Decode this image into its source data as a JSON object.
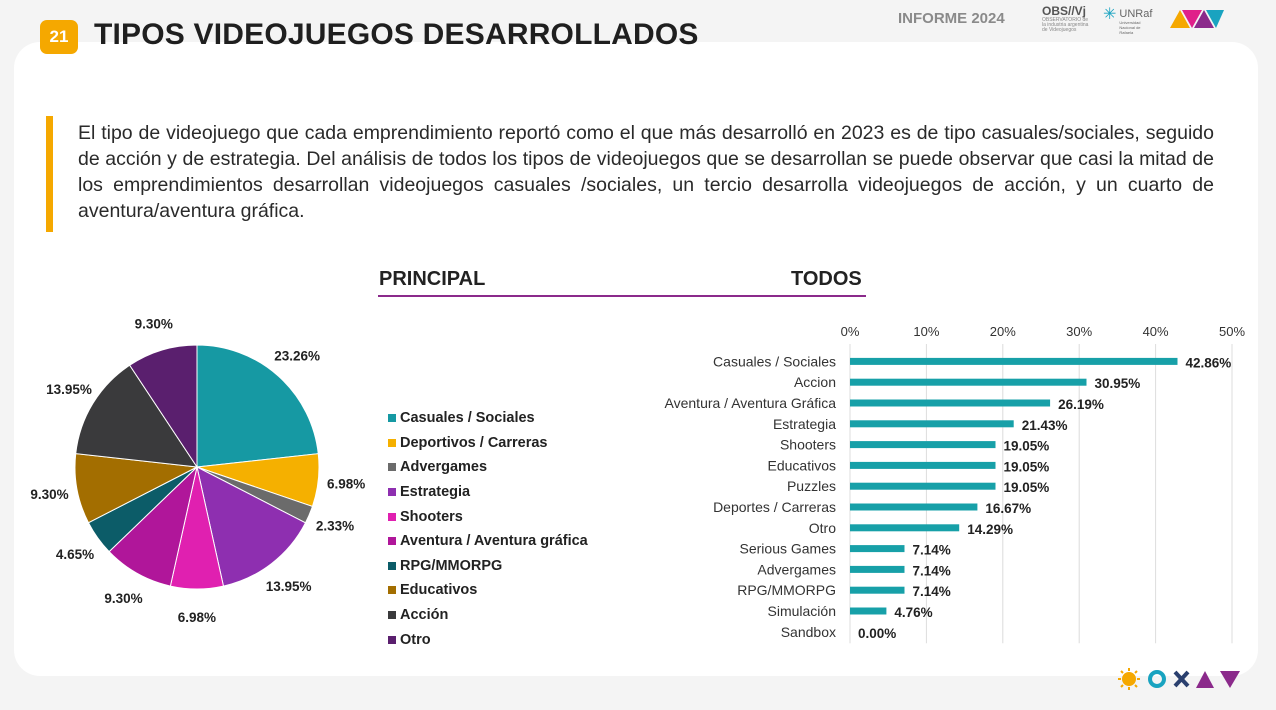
{
  "header": {
    "badge": "21",
    "title": "TIPOS VIDEOJUEGOS DESARROLLADOS",
    "brand": "INFORME 2024",
    "logo_obs": "OBS//Vj",
    "logo_obs_sub": "OBSERVATORIO de la industria argentina de Videojuegos",
    "logo_unraf": "UNRaf",
    "logo_unraf_sub": "Universidad Nacional de Rafaela"
  },
  "intro": "El tipo de videojuego que cada emprendimiento reportó como el que más desarrolló en 2023 es de tipo casuales/sociales, seguido de acción y de estrategia. Del análisis de todos los tipos de videojuegos que se desarrollan se puede observar que casi la mitad de los emprendimientos desarrollan videojuegos casuales /sociales, un tercio desarrolla videojuegos de acción, y un cuarto de aventura/aventura gráfica.",
  "sections": {
    "principal": "PRINCIPAL",
    "todos": "TODOS"
  },
  "colors": {
    "accent": "#f5a800",
    "line": "#8b2a8b",
    "bar": "#17a0a8"
  },
  "chart_data": [
    {
      "type": "pie",
      "title": "PRINCIPAL",
      "legend_position": "right",
      "categories": [
        "Casuales / Sociales",
        "Deportivos / Carreras",
        "Advergames",
        "Estrategia",
        "Shooters",
        "Aventura / Aventura gráfica",
        "RPG/MMORPG",
        "Educativos",
        "Acción",
        "Otro"
      ],
      "values": [
        23.26,
        6.98,
        2.33,
        13.95,
        6.98,
        9.3,
        4.65,
        9.3,
        13.95,
        9.3
      ],
      "labels": [
        "23.26%",
        "6.98%",
        "2.33%",
        "13.95%",
        "6.98%",
        "9.30%",
        "4.65%",
        "9.30%",
        "13.95%",
        "9.30%"
      ],
      "colors": [
        "#1699a3",
        "#f5b000",
        "#6b6b6b",
        "#8e2fb0",
        "#e020b0",
        "#b0169a",
        "#0c5c68",
        "#a36e00",
        "#3a3a3c",
        "#5a1f6e"
      ]
    },
    {
      "type": "bar",
      "orientation": "horizontal",
      "title": "TODOS",
      "categories": [
        "Casuales / Sociales",
        "Accion",
        "Aventura / Aventura Gráfica",
        "Estrategia",
        "Shooters",
        "Educativos",
        "Puzzles",
        "Deportes / Carreras",
        "Otro",
        "Serious Games",
        "Advergames",
        "RPG/MMORPG",
        "Simulación",
        "Sandbox"
      ],
      "values": [
        42.86,
        30.95,
        26.19,
        21.43,
        19.05,
        19.05,
        19.05,
        16.67,
        14.29,
        7.14,
        7.14,
        7.14,
        4.76,
        0.0
      ],
      "labels": [
        "42.86%",
        "30.95%",
        "26.19%",
        "21.43%",
        "19.05%",
        "19.05%",
        "19.05%",
        "16.67%",
        "14.29%",
        "7.14%",
        "7.14%",
        "7.14%",
        "4.76%",
        "0.00%"
      ],
      "xlim": [
        0,
        50
      ],
      "ticks": [
        "0%",
        "10%",
        "20%",
        "30%",
        "40%",
        "50%"
      ],
      "grid": true
    }
  ]
}
